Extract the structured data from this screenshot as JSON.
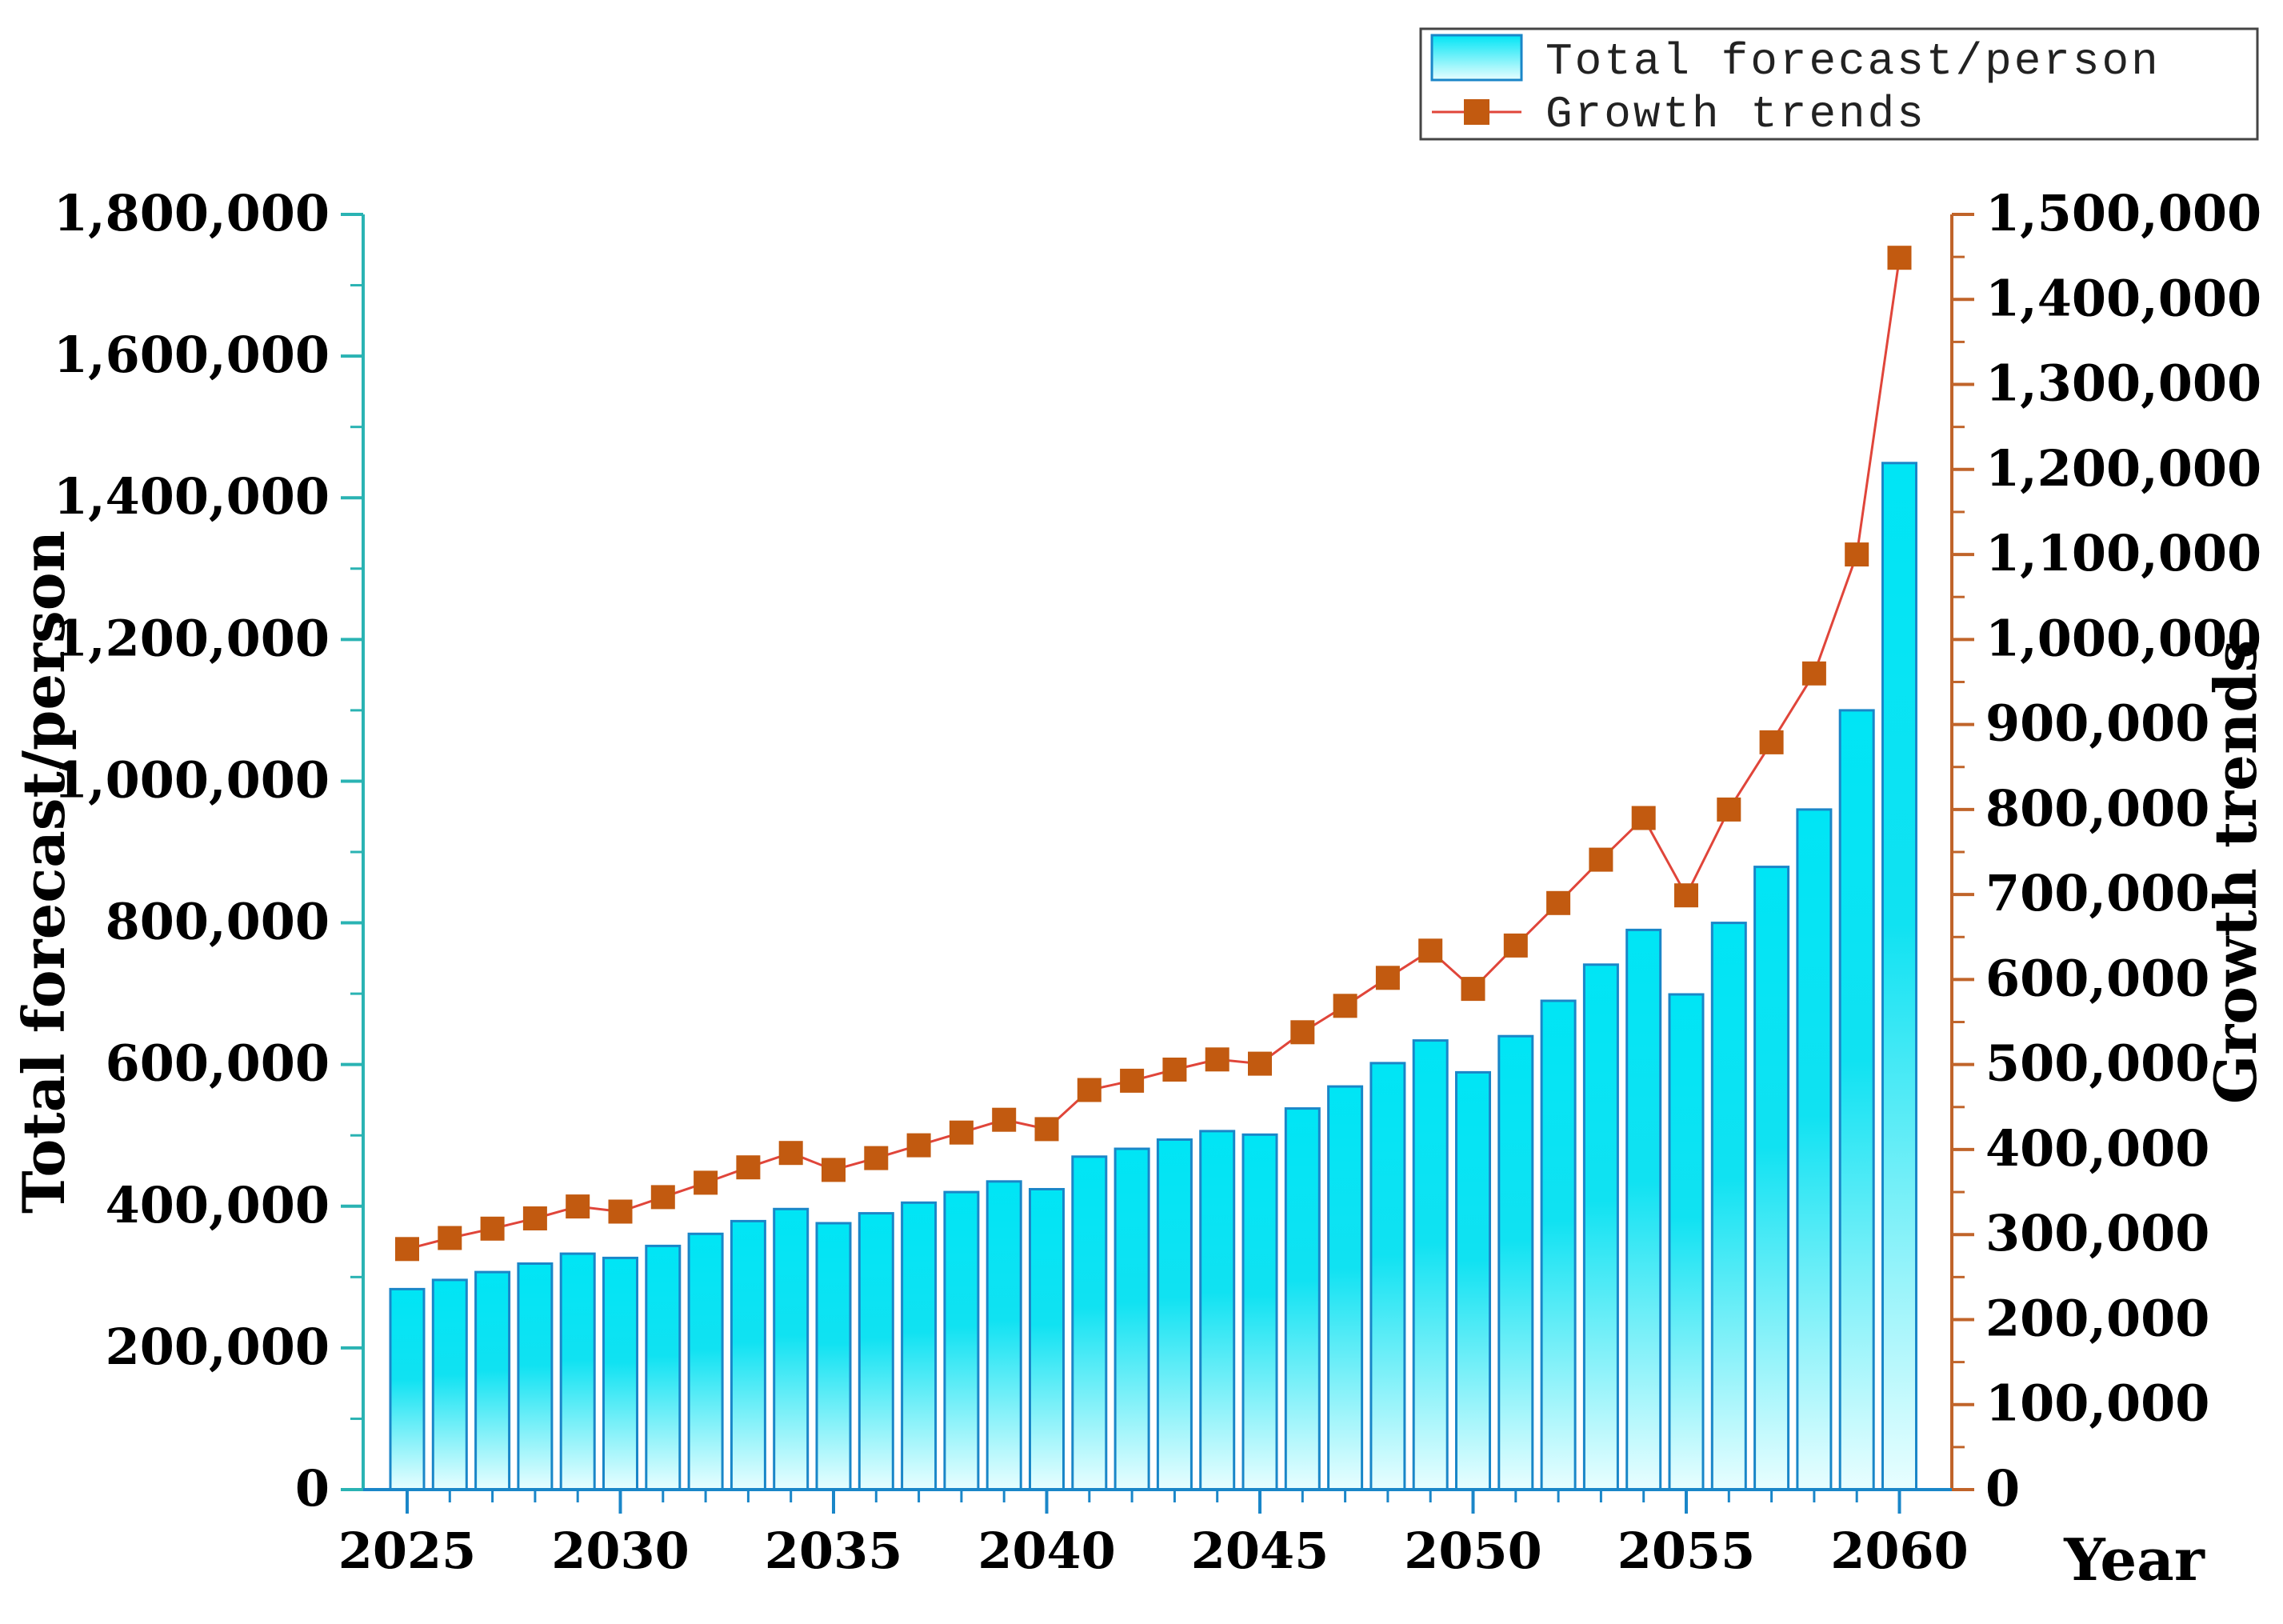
{
  "chart_data": {
    "type": "bar",
    "title": "",
    "xlabel": "Year",
    "ylabel": "Total forecast/person",
    "ylabel_right": "Growth trends",
    "ylim": [
      0,
      1800000
    ],
    "ylim_right": [
      0,
      1500000
    ],
    "x_tick_labels": [
      "2025",
      "2030",
      "2035",
      "2040",
      "2045",
      "2050",
      "2055",
      "2060"
    ],
    "y_tick_labels": [
      "0",
      "200,000",
      "400,000",
      "600,000",
      "800,000",
      "1,000,000",
      "1,200,000",
      "1,400,000",
      "1,600,000",
      "1,800,000"
    ],
    "y_tick_labels_right": [
      "0",
      "100,000",
      "200,000",
      "300,000",
      "400,000",
      "500,000",
      "600,000",
      "700,000",
      "800,000",
      "900,000",
      "1,000,000",
      "1,100,000",
      "1,200,000",
      "1,300,000",
      "1,400,000",
      "1,500,000"
    ],
    "categories": [
      2025,
      2026,
      2027,
      2028,
      2029,
      2030,
      2031,
      2032,
      2033,
      2034,
      2035,
      2036,
      2037,
      2038,
      2039,
      2040,
      2041,
      2042,
      2043,
      2044,
      2045,
      2046,
      2047,
      2048,
      2049,
      2050,
      2051,
      2052,
      2053,
      2054,
      2055,
      2056,
      2057,
      2058,
      2059,
      2060
    ],
    "series": [
      {
        "name": "Total forecast/person",
        "type": "bar",
        "axis": "left",
        "values": [
          283000,
          296000,
          307000,
          319000,
          333000,
          327000,
          344000,
          361000,
          379000,
          396000,
          376000,
          390000,
          405000,
          420000,
          435000,
          424000,
          470000,
          481000,
          494000,
          506000,
          501000,
          538000,
          569000,
          602000,
          634000,
          589000,
          640000,
          690000,
          741000,
          790000,
          699000,
          800000,
          879000,
          960000,
          1100000,
          1449000
        ]
      },
      {
        "name": "Growth trends",
        "type": "line",
        "axis": "right",
        "values": [
          283000,
          296000,
          307000,
          319000,
          333000,
          327000,
          344000,
          361000,
          379000,
          396000,
          376000,
          390000,
          405000,
          420000,
          435000,
          424000,
          470000,
          481000,
          494000,
          506000,
          501000,
          538000,
          569000,
          602000,
          634000,
          589000,
          640000,
          690000,
          741000,
          790000,
          699000,
          800000,
          879000,
          960000,
          1100000,
          1449000
        ]
      }
    ],
    "legend": {
      "position": "top-right",
      "entries": [
        "Total forecast/person",
        "Growth trends"
      ]
    },
    "grid": false
  },
  "colors": {
    "bar_top": "#00e5f5",
    "bar_bottom": "#e8feff",
    "bar_edge": "#1a86c8",
    "line": "#e0453a",
    "marker": "#c25a10",
    "axis_left": "#2ab3b3",
    "axis_right": "#c0642a",
    "axis_bottom": "#1a86c8"
  }
}
